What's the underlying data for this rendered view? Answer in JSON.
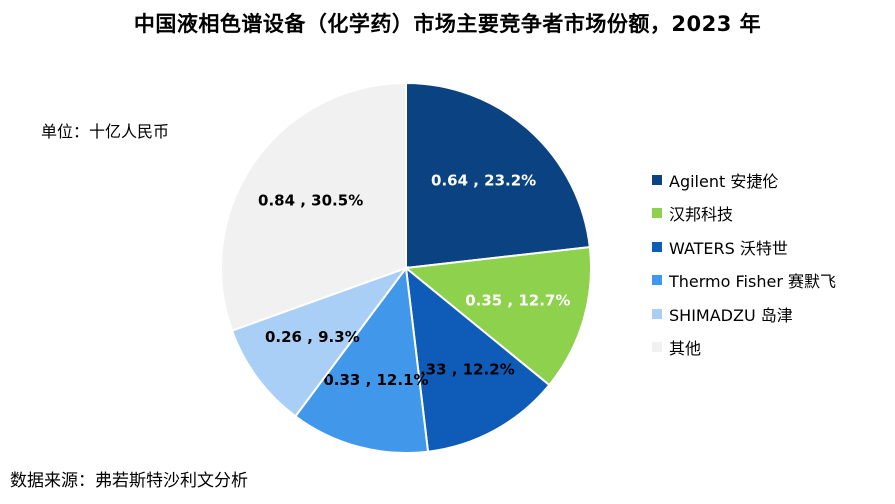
{
  "header": {
    "title": "中国液相色谱设备（化学药）市场主要竞争者市场份额，2023 年"
  },
  "unit_label": "单位：十亿人民币",
  "source_label": "数据来源：弗若斯特沙利文分析",
  "chart_data": {
    "type": "pie",
    "title": "中国液相色谱设备（化学药）市场主要竞争者市场份额，2023 年",
    "unit": "十亿人民币",
    "legend_position": "right",
    "slices": [
      {
        "name": "Agilent 安捷伦",
        "value": 0.64,
        "percent": 23.2,
        "label": "0.64 , 23.2%",
        "color": "#0b4282",
        "label_color": "#ffffff"
      },
      {
        "name": "汉邦科技",
        "value": 0.35,
        "percent": 12.7,
        "label": "0.35 , 12.7%",
        "color": "#8dd14d",
        "label_color": "#ffffff"
      },
      {
        "name": "WATERS 沃特世",
        "value": 0.33,
        "percent": 12.2,
        "label": "0.33 , 12.2%",
        "color": "#0f5cb8",
        "label_color": "#000000"
      },
      {
        "name": "Thermo Fisher 赛默飞",
        "value": 0.33,
        "percent": 12.1,
        "label": "0.33 , 12.1%",
        "color": "#4197ea",
        "label_color": "#000000"
      },
      {
        "name": "SHIMADZU 岛津",
        "value": 0.26,
        "percent": 9.3,
        "label": "0.26 , 9.3%",
        "color": "#a9cff6",
        "label_color": "#000000"
      },
      {
        "name": "其他",
        "value": 0.84,
        "percent": 30.5,
        "label": "0.84 , 30.5%",
        "color": "#f1f1f1",
        "label_color": "#000000"
      }
    ]
  }
}
